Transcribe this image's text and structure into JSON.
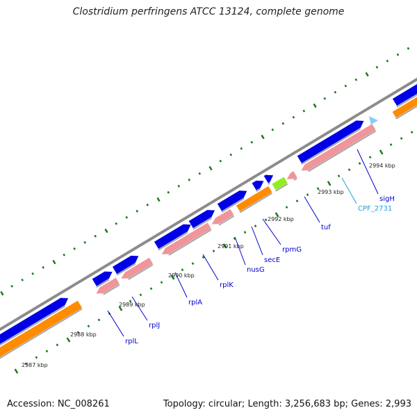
{
  "title": "Clostridium perfringens ATCC 13124, complete genome",
  "footer": {
    "accession": "Accession: NC_008261",
    "summary": "Topology: circular; Length: 3,256,683 bp; Genes: 2,993"
  },
  "colors": {
    "backbone": "#8c8c8c",
    "cds_plus": "#0000e6",
    "cds_minus": "#f0959a",
    "rrna": "#ff8c00",
    "trna": "#87cefa",
    "pseudo": "#c0c0c0",
    "misc": "#90ee20",
    "tick": "#1a7a1a",
    "gene_label": "#0000cc",
    "rna_label": "#1ea0d6"
  },
  "position_labels": [
    {
      "text": "2987 kbp",
      "kbp": 2987
    },
    {
      "text": "2988 kbp",
      "kbp": 2988
    },
    {
      "text": "2989 kbp",
      "kbp": 2989
    },
    {
      "text": "2990 kbp",
      "kbp": 2990
    },
    {
      "text": "2991 kbp",
      "kbp": 2991
    },
    {
      "text": "2992 kbp",
      "kbp": 2992
    },
    {
      "text": "2993 kbp",
      "kbp": 2993
    },
    {
      "text": "2994 kbp",
      "kbp": 2994
    }
  ],
  "gene_labels": [
    {
      "text": "rplL",
      "type": "cds"
    },
    {
      "text": "rplJ",
      "type": "cds"
    },
    {
      "text": "rplA",
      "type": "cds"
    },
    {
      "text": "rplK",
      "type": "cds"
    },
    {
      "text": "nusG",
      "type": "cds"
    },
    {
      "text": "secE",
      "type": "cds"
    },
    {
      "text": "rpmG",
      "type": "cds"
    },
    {
      "text": "tuf",
      "type": "cds"
    },
    {
      "text": "CPF_2731",
      "type": "trna"
    },
    {
      "text": "sigH",
      "type": "cds"
    }
  ]
}
